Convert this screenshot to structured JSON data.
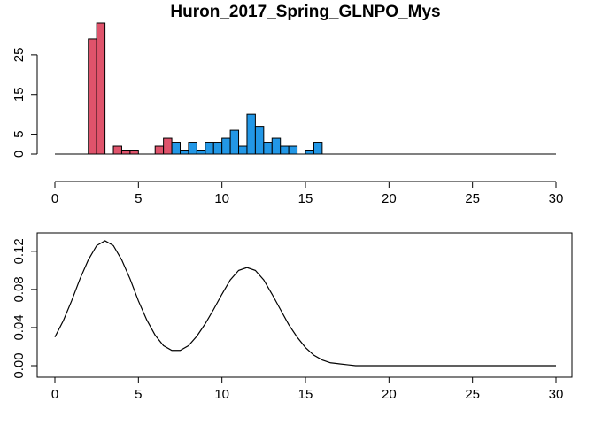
{
  "chart_data": [
    {
      "type": "histogram",
      "title": "Huron_2017_Spring_GLNPO_Mys",
      "bins": [
        2,
        2.5,
        3,
        3.5,
        4,
        4.5,
        5,
        5.5,
        6,
        6.5,
        7,
        7.5,
        8,
        8.5,
        9,
        9.5,
        10,
        10.5,
        11,
        11.5,
        12,
        12.5,
        13,
        13.5,
        14,
        14.5,
        15,
        15.5,
        16
      ],
      "series": [
        {
          "color": "#DF536B",
          "values": [
            29,
            33,
            0,
            2,
            1,
            1,
            0,
            0,
            2,
            4,
            1,
            0,
            0,
            0,
            0,
            0,
            0,
            0,
            0,
            0,
            0,
            0,
            0,
            0,
            0,
            0,
            0,
            0
          ]
        },
        {
          "color": "#2297E6",
          "values": [
            0,
            0,
            0,
            0,
            0,
            0,
            0,
            0,
            0,
            0,
            3,
            1,
            3,
            1,
            3,
            3,
            4,
            6,
            2,
            10,
            7,
            3,
            4,
            2,
            2,
            0,
            1,
            3
          ]
        }
      ],
      "xlim": [
        0,
        30
      ],
      "xticks": [
        0,
        5,
        10,
        15,
        20,
        25,
        30
      ],
      "ylim": [
        0,
        33
      ],
      "yticks": [
        0,
        5,
        15,
        25
      ]
    },
    {
      "type": "line",
      "x": [
        0,
        0.5,
        1,
        1.5,
        2,
        2.5,
        3,
        3.5,
        4,
        4.5,
        5,
        5.5,
        6,
        6.5,
        7,
        7.5,
        8,
        8.5,
        9,
        9.5,
        10,
        10.5,
        11,
        11.5,
        12,
        12.5,
        13,
        13.5,
        14,
        14.5,
        15,
        15.5,
        16,
        16.5,
        17,
        17.5,
        18,
        19,
        20,
        21,
        22,
        23,
        24,
        25,
        26,
        27,
        28,
        29,
        30
      ],
      "values": [
        0.03,
        0.047,
        0.068,
        0.091,
        0.111,
        0.126,
        0.131,
        0.126,
        0.111,
        0.091,
        0.068,
        0.048,
        0.032,
        0.021,
        0.016,
        0.016,
        0.021,
        0.031,
        0.044,
        0.059,
        0.075,
        0.09,
        0.1,
        0.103,
        0.1,
        0.09,
        0.075,
        0.059,
        0.043,
        0.03,
        0.019,
        0.011,
        0.006,
        0.003,
        0.002,
        0.001,
        0,
        0,
        0,
        0,
        0,
        0,
        0,
        0,
        0,
        0,
        0,
        0,
        0
      ],
      "color": "#000000",
      "xlim": [
        0,
        30
      ],
      "xticks": [
        0,
        5,
        10,
        15,
        20,
        25,
        30
      ],
      "ylim": [
        0,
        0.131
      ],
      "yticks": [
        {
          "value": 0,
          "label": "0.00"
        },
        0.04,
        0.08,
        0.12
      ],
      "box": true
    }
  ]
}
